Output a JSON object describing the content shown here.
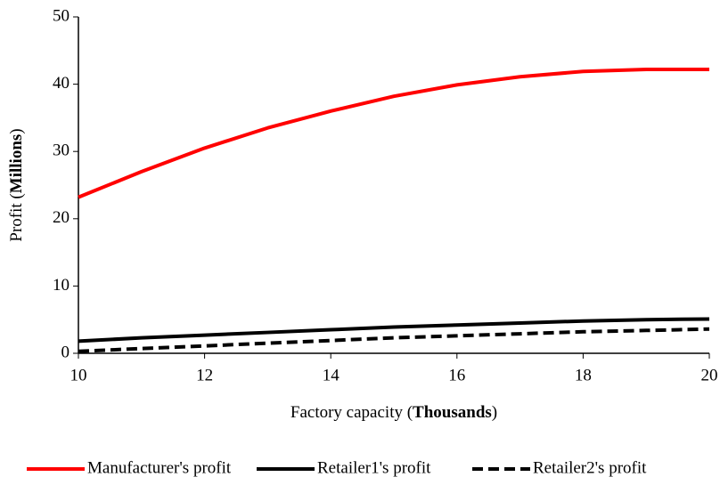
{
  "chart_data": {
    "type": "line",
    "xlabel": [
      "Factory capacity (",
      "Thousands",
      ")"
    ],
    "ylabel": [
      "Profit (",
      "Millions",
      ")"
    ],
    "x": [
      10,
      11,
      12,
      13,
      14,
      15,
      16,
      17,
      18,
      19,
      20
    ],
    "series": [
      {
        "name": "Manufacturer's profit",
        "color": "#ff0000",
        "dashed": false,
        "values": [
          23.2,
          27.0,
          30.5,
          33.5,
          36.0,
          38.2,
          39.9,
          41.1,
          41.9,
          42.2,
          42.2
        ]
      },
      {
        "name": "Retailer1's profit",
        "color": "#000000",
        "dashed": false,
        "values": [
          1.8,
          2.3,
          2.7,
          3.1,
          3.5,
          3.9,
          4.2,
          4.5,
          4.8,
          5.0,
          5.1
        ]
      },
      {
        "name": "Retailer2's profit",
        "color": "#000000",
        "dashed": true,
        "values": [
          0.3,
          0.7,
          1.1,
          1.5,
          1.9,
          2.3,
          2.6,
          2.9,
          3.2,
          3.4,
          3.6
        ]
      }
    ],
    "xlim": [
      10,
      20
    ],
    "xticks": [
      10,
      12,
      14,
      16,
      18,
      20
    ],
    "ylim": [
      0,
      50
    ],
    "yticks": [
      0,
      10,
      20,
      30,
      40,
      50
    ],
    "legend": "bottom"
  }
}
